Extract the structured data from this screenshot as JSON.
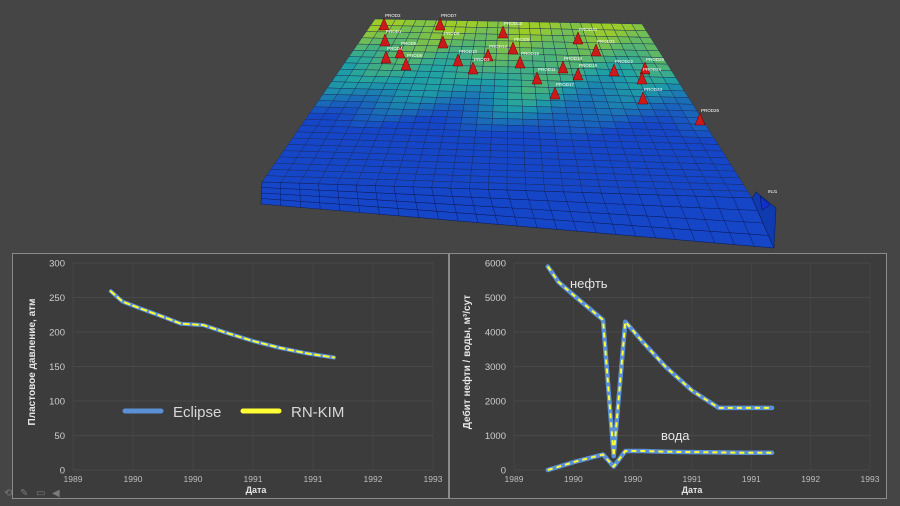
{
  "reservoir_scene": {
    "producer_wells": [
      "PROD2",
      "PROD7",
      "PROD13",
      "PROD1",
      "PROD8",
      "PROD9",
      "PROD20",
      "PROD5",
      "PROD12",
      "PROD21",
      "PROD4",
      "PROD10",
      "PROD15",
      "PROD18",
      "PROD22",
      "PROD6",
      "PROD3",
      "PROD11",
      "PROD19",
      "PROD25",
      "PROD24",
      "PROD17",
      "PROD23",
      "PROD26"
    ],
    "injector_wells": [
      "INJ1"
    ],
    "colors": {
      "producer_marker": "#cc1a1a",
      "injector_marker": "#1030c8",
      "scale_low": "#1646c8",
      "scale_mid": "#1fa3a3",
      "scale_high": "#9ccc2a"
    }
  },
  "chart_data": [
    {
      "type": "line",
      "xlabel": "Дата",
      "ylabel": "Пластовое давление, атм",
      "xticks": [
        "1989",
        "1990",
        "1990",
        "1991",
        "1991",
        "1992",
        "1993"
      ],
      "xlim": [
        1989.0,
        1993.0
      ],
      "ylim": [
        0,
        300
      ],
      "yticks": [
        0,
        50,
        100,
        150,
        200,
        250,
        300
      ],
      "grid": true,
      "legend": "center",
      "series": [
        {
          "name": "Eclipse",
          "color": "#5b8fd6",
          "style": "solid",
          "x": [
            1989.42,
            1989.55,
            1989.75,
            1990.0,
            1990.2,
            1990.45,
            1990.7,
            1991.0,
            1991.3,
            1991.6,
            1991.9
          ],
          "y": [
            259,
            244,
            234,
            222,
            212,
            210,
            199,
            187,
            177,
            169,
            163
          ]
        },
        {
          "name": "RN-KIM",
          "color": "#ffff33",
          "style": "dashed",
          "x": [
            1989.42,
            1989.55,
            1989.75,
            1990.0,
            1990.2,
            1990.45,
            1990.7,
            1991.0,
            1991.3,
            1991.6,
            1991.9
          ],
          "y": [
            259,
            244,
            234,
            222,
            212,
            210,
            199,
            187,
            177,
            169,
            163
          ]
        }
      ]
    },
    {
      "type": "line",
      "xlabel": "Дата",
      "ylabel": "Дебит нефти / воды, м³/сут",
      "xticks": [
        "1989",
        "1990",
        "1990",
        "1991",
        "1991",
        "1992",
        "1993"
      ],
      "xlim": [
        1989.0,
        1993.0
      ],
      "ylim": [
        0,
        6000
      ],
      "yticks": [
        0,
        1000,
        2000,
        3000,
        4000,
        5000,
        6000
      ],
      "grid": true,
      "annotations": [
        "нефть",
        "вода"
      ],
      "series": [
        {
          "role": "oil",
          "color": "#5b8fd6",
          "dash_color": "#ffff33",
          "x": [
            1989.38,
            1989.5,
            1989.7,
            1990.0,
            1990.12,
            1990.25,
            1990.45,
            1990.7,
            1991.0,
            1991.3,
            1991.6,
            1991.9
          ],
          "y": [
            5900,
            5450,
            5000,
            4350,
            400,
            4300,
            3700,
            3000,
            2300,
            1800,
            1800,
            1800
          ]
        },
        {
          "role": "water",
          "color": "#5b8fd6",
          "dash_color": "#ffff33",
          "x": [
            1989.38,
            1989.7,
            1990.0,
            1990.12,
            1990.25,
            1990.45,
            1990.7,
            1991.0,
            1991.3,
            1991.6,
            1991.9
          ],
          "y": [
            0,
            250,
            450,
            100,
            550,
            550,
            530,
            520,
            510,
            500,
            500
          ]
        }
      ]
    }
  ]
}
